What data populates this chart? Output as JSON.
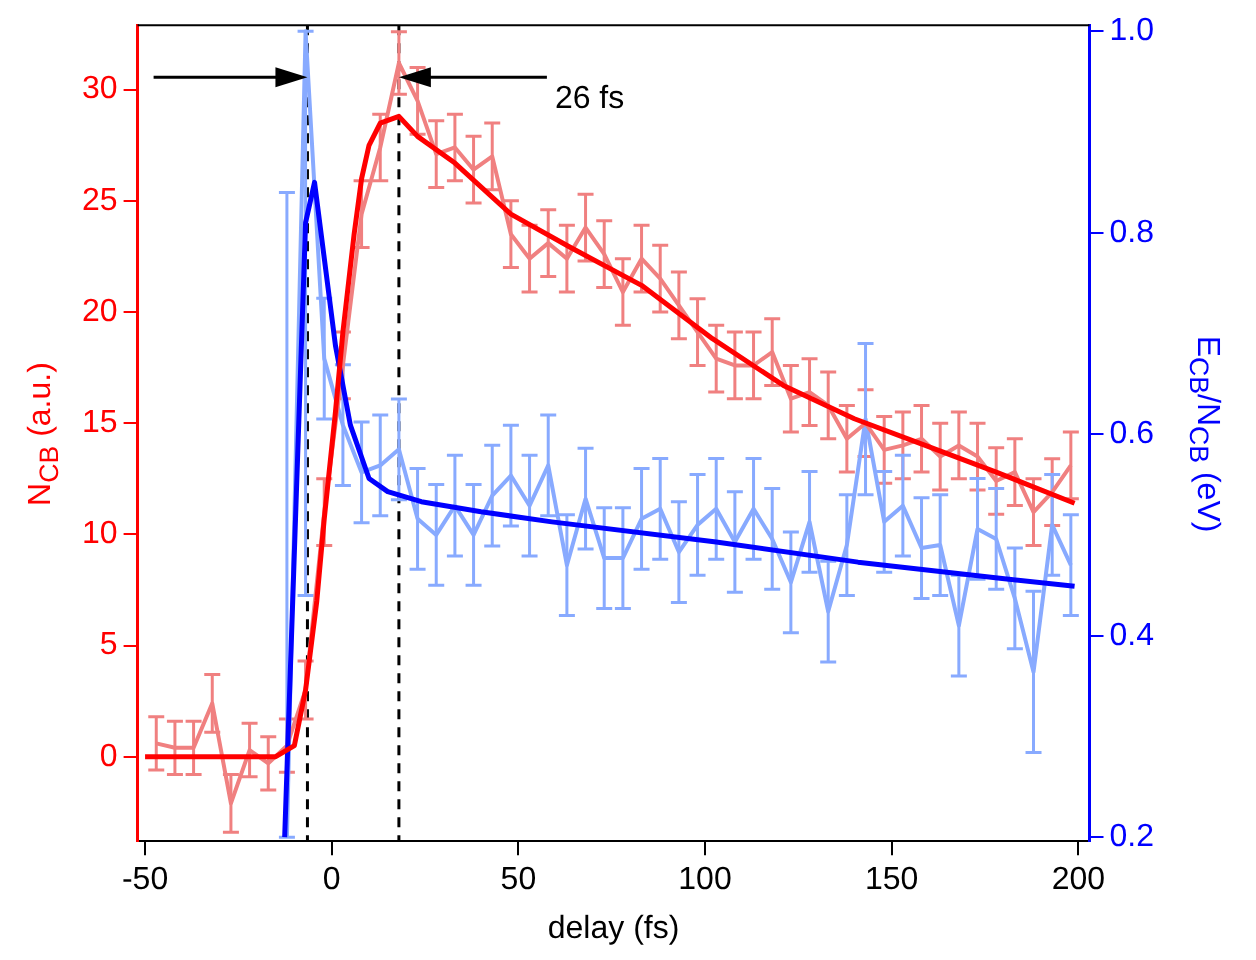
{
  "chart_data": {
    "type": "line",
    "xlabel": "delay (fs)",
    "ylabel": "N$_{CB}$ (a.u.)",
    "y2label": "E$_{CB}$/N$_{CB}$ (eV)",
    "xlim": [
      -52,
      203
    ],
    "xticks": [
      -50,
      0,
      50,
      100,
      150,
      200
    ],
    "ylim": [
      -3.8,
      32.9
    ],
    "yticks": [
      0,
      5,
      10,
      15,
      20,
      25,
      30
    ],
    "y2lim": [
      0.196,
      1.006
    ],
    "y2ticks": [
      0.2,
      0.4,
      0.6,
      0.8,
      {
        "value": 1,
        "label": "1.0"
      }
    ],
    "series": [
      {
        "color": "#f08080",
        "x": [
          -47,
          -42,
          -37,
          -32,
          -27,
          -22,
          -17,
          -12,
          -7,
          -2,
          3,
          8,
          13,
          18,
          23,
          28,
          33,
          38,
          43,
          48,
          53,
          58,
          63,
          68,
          73,
          78,
          83,
          88,
          93,
          98,
          103,
          108,
          113,
          118,
          123,
          128,
          133,
          138,
          143,
          148,
          153,
          158,
          163,
          168,
          173,
          178,
          183,
          188,
          193,
          198
        ],
        "values": [
          0.6,
          0.4,
          0.4,
          2.4,
          -2.1,
          0.3,
          -0.3,
          0.5,
          3.0,
          11,
          17.6,
          24.4,
          27.4,
          31.2,
          29.5,
          27.1,
          27.4,
          26.4,
          27.0,
          23.5,
          22.4,
          23.1,
          22.4,
          23.8,
          22.6,
          20.9,
          22.4,
          21.5,
          20.3,
          19.1,
          17.9,
          17.6,
          17.6,
          18.2,
          16.1,
          16.4,
          15.8,
          14.3,
          15.0,
          13.8,
          14.0,
          14.3,
          13.5,
          14.0,
          13.5,
          12.4,
          12.8,
          11.0,
          11.9,
          13.1
        ],
        "errors": [
          1.2,
          1.2,
          1.2,
          1.3,
          1.3,
          1.2,
          1.2,
          1.2,
          1.3,
          1.5,
          1.5,
          1.5,
          1.5,
          1.4,
          1.5,
          1.5,
          1.5,
          1.5,
          1.5,
          1.5,
          1.5,
          1.5,
          1.5,
          1.5,
          1.5,
          1.5,
          1.5,
          1.5,
          1.5,
          1.5,
          1.5,
          1.5,
          1.5,
          1.5,
          1.5,
          1.5,
          1.5,
          1.5,
          1.5,
          1.5,
          1.5,
          1.5,
          1.5,
          1.5,
          1.5,
          1.5,
          1.5,
          1.5,
          1.5,
          1.5
        ]
      },
      {
        "color": "#ff0000",
        "x": [
          -50,
          -15,
          -10,
          -7,
          -4,
          -2,
          1,
          3,
          6,
          8,
          10,
          13,
          18,
          23,
          33,
          48,
          64,
          83,
          102,
          121,
          140,
          159,
          178,
          199
        ],
        "values": [
          0,
          0,
          0.5,
          3.0,
          7,
          10.7,
          15.5,
          19.1,
          23.5,
          26,
          27.5,
          28.5,
          28.8,
          27.9,
          26.7,
          24.4,
          22.9,
          21.2,
          18.8,
          16.7,
          15.2,
          14.0,
          12.8,
          11.4
        ]
      },
      {
        "color": "#88aaff",
        "axis": "y2",
        "x": [
          -12,
          -7,
          -2,
          3,
          8,
          13,
          18,
          23,
          28,
          33,
          38,
          43,
          48,
          53,
          58,
          63,
          68,
          73,
          78,
          83,
          88,
          93,
          98,
          103,
          108,
          113,
          118,
          123,
          128,
          133,
          138,
          143,
          148,
          153,
          158,
          163,
          168,
          173,
          178,
          183,
          188,
          193,
          198
        ],
        "values": [
          0.2,
          1.0,
          0.675,
          0.609,
          0.562,
          0.569,
          0.585,
          0.516,
          0.5,
          0.529,
          0.5,
          0.539,
          0.559,
          0.529,
          0.569,
          0.47,
          0.536,
          0.477,
          0.477,
          0.516,
          0.526,
          0.483,
          0.51,
          0.526,
          0.493,
          0.526,
          0.496,
          0.453,
          0.513,
          0.424,
          0.49,
          0.615,
          0.513,
          0.529,
          0.487,
          0.49,
          0.41,
          0.506,
          0.496,
          0.437,
          0.364,
          0.51,
          0.47
        ],
        "errors": [
          [
            0.2,
            0.84
          ],
          [
            0.44,
            1.0
          ],
          0.06,
          0.06,
          0.05,
          0.05,
          0.05,
          0.05,
          0.05,
          0.05,
          0.05,
          0.05,
          0.05,
          0.05,
          0.05,
          0.05,
          0.05,
          0.05,
          0.05,
          0.05,
          0.05,
          0.05,
          0.05,
          0.05,
          0.05,
          0.05,
          0.05,
          0.05,
          0.05,
          0.05,
          0.05,
          0.075,
          0.05,
          0.05,
          0.05,
          0.05,
          0.05,
          0.05,
          0.05,
          0.05,
          0.08,
          0.05,
          0.05
        ]
      },
      {
        "color": "#0000ff",
        "axis": "y2",
        "x": [
          -12.6,
          -7,
          -4.6,
          1,
          5,
          10,
          15,
          24,
          40,
          59,
          103,
          141,
          179,
          199
        ],
        "values": [
          0.2,
          0.81,
          0.85,
          0.688,
          0.609,
          0.556,
          0.543,
          0.533,
          0.523,
          0.513,
          0.493,
          0.473,
          0.457,
          0.449
        ]
      }
    ],
    "ref_lines": [
      {
        "axis": "x",
        "value": -6.5,
        "color": "#000000",
        "line_style": "dashed"
      },
      {
        "axis": "x",
        "value": 18,
        "color": "#000000",
        "line_style": "dashed"
      }
    ],
    "annotations": [
      "26 fs"
    ]
  }
}
